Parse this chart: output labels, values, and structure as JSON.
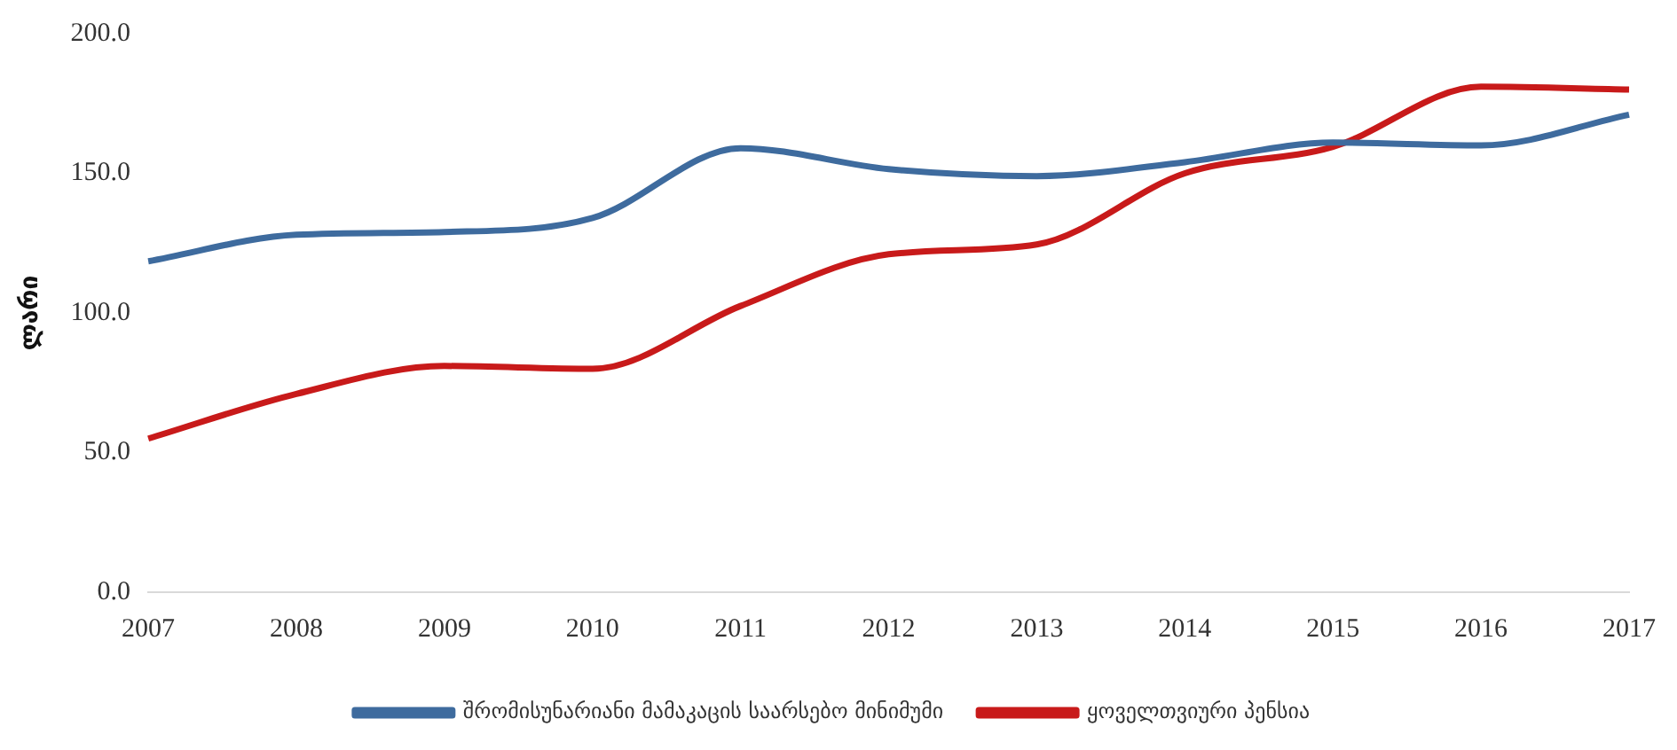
{
  "chart_data": {
    "type": "line",
    "ylabel": "ლარი",
    "categories": [
      "2007",
      "2008",
      "2009",
      "2010",
      "2011",
      "2012",
      "2013",
      "2014",
      "2015",
      "2016",
      "2017"
    ],
    "series": [
      {
        "name": "შრომისუნარიანი მამაკაცის საარსებო მინიმუმი",
        "color": "#3e6b9e",
        "values": [
          118.5,
          128,
          129,
          134,
          159,
          151.5,
          149,
          154,
          161,
          160,
          171
        ]
      },
      {
        "name": "ყოველთვიური პენსია",
        "color": "#c81a1a",
        "values": [
          55,
          71,
          81,
          80,
          102.5,
          121,
          124.5,
          150,
          159.5,
          181,
          180
        ]
      }
    ],
    "ylim": [
      0,
      200
    ],
    "yticks": [
      {
        "value": 0,
        "label": "0.0"
      },
      {
        "value": 50,
        "label": "50.0"
      },
      {
        "value": 100,
        "label": "100.0"
      },
      {
        "value": 150,
        "label": "150.0"
      },
      {
        "value": 200,
        "label": "200.0"
      }
    ],
    "grid": false,
    "legend": "bottom",
    "marker": "none",
    "line_style": "solid"
  }
}
